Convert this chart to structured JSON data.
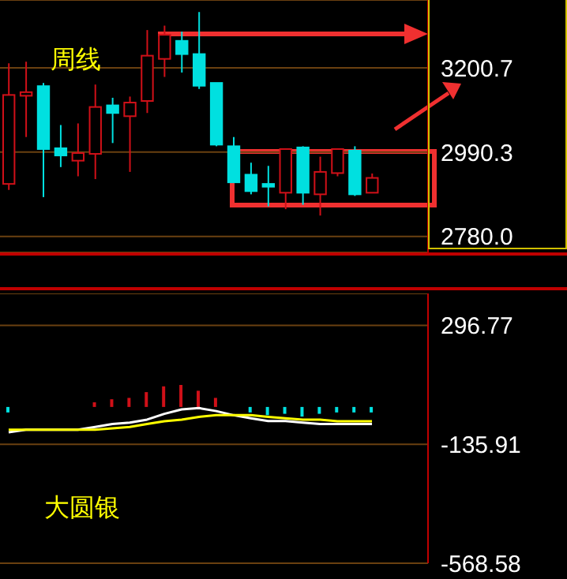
{
  "chart_data": [
    {
      "type": "candlestick",
      "annotations": [
        "周线"
      ],
      "categories": [
        null,
        null,
        null,
        null,
        null,
        null,
        null,
        null,
        null,
        null,
        null,
        null,
        null,
        null,
        null,
        null,
        null,
        null,
        null,
        null,
        null,
        null
      ],
      "ohlc": [
        [
          2911,
          3212,
          2896,
          3133
        ],
        [
          3131,
          3216,
          3028,
          3140
        ],
        [
          3155,
          3163,
          2878,
          2998
        ],
        [
          3000,
          3058,
          2953,
          2982
        ],
        [
          2969,
          3062,
          2930,
          2988
        ],
        [
          2986,
          3159,
          2923,
          3103
        ],
        [
          3107,
          3126,
          3013,
          3088
        ],
        [
          3080,
          3129,
          2941,
          3114
        ],
        [
          3118,
          3295,
          3088,
          3231
        ],
        [
          3223,
          3306,
          3178,
          3283
        ],
        [
          3268,
          3291,
          3189,
          3235
        ],
        [
          3235,
          3340,
          3148,
          3156
        ],
        [
          3163,
          3163,
          3005,
          3009
        ],
        [
          3005,
          3028,
          2915,
          2915
        ],
        [
          2934,
          2964,
          2885,
          2893
        ],
        [
          2911,
          2956,
          2855,
          2904
        ],
        [
          2889,
          2998,
          2848,
          2998
        ],
        [
          3002,
          3005,
          2859,
          2889
        ],
        [
          2885,
          2979,
          2832,
          2941
        ],
        [
          2938,
          2998,
          2930,
          2998
        ],
        [
          2994,
          3005,
          2881,
          2885
        ],
        [
          2889,
          2937,
          2889,
          2926
        ]
      ],
      "colors": [
        "#d01018",
        "#d01018",
        "#00e0e0",
        "#00e0e0",
        "#d01018",
        "#d01018",
        "#00e0e0",
        "#d01018",
        "#d01018",
        "#d01018",
        "#00e0e0",
        "#00e0e0",
        "#00e0e0",
        "#00e0e0",
        "#00e0e0",
        "#00e0e0",
        "#d01018",
        "#00e0e0",
        "#d01018",
        "#d01018",
        "#00e0e0",
        "#d01018"
      ],
      "ylim": [
        2740,
        3370
      ],
      "yticks": [
        3200.7,
        2990.3,
        {
          "value": 2780,
          "label": "2780.0"
        }
      ],
      "grid": "y"
    },
    {
      "type": "line",
      "annotations": [
        "大圆银"
      ],
      "categories": [
        null,
        null,
        null,
        null,
        null,
        null,
        null,
        null,
        null,
        null,
        null,
        null,
        null,
        null,
        null,
        null,
        null,
        null,
        null,
        null,
        null,
        null
      ],
      "series": [
        {
          "type": "bar",
          "colors": [
            "#00e0e0",
            null,
            null,
            null,
            null,
            "#d01018",
            "#d01018",
            "#d01018",
            "#d01018",
            "#d01018",
            "#d01018",
            "#d01018",
            "#d01018",
            null,
            "#00e0e0",
            "#00e0e0",
            "#00e0e0",
            "#00e0e0",
            "#00e0e0",
            "#00e0e0",
            "#00e0e0",
            "#00e0e0"
          ],
          "values": [
            -20,
            null,
            null,
            null,
            null,
            17,
            28,
            33,
            54,
            75,
            80,
            59,
            33,
            null,
            -20,
            -30,
            -25,
            -35,
            -25,
            -20,
            -20,
            -20
          ]
        },
        {
          "type": "line",
          "color": "#ffffff",
          "values": [
            -92,
            -83,
            -83,
            -83,
            -83,
            -73,
            -62,
            -57,
            -46,
            -25,
            -9,
            -4,
            -15,
            -30,
            -41,
            -51,
            -51,
            -57,
            -62,
            -62,
            -62,
            -62
          ]
        },
        {
          "type": "line",
          "color": "#ffff00",
          "values": [
            -83,
            -83,
            -83,
            -83,
            -83,
            -83,
            -78,
            -73,
            -62,
            -52,
            -46,
            -36,
            -30,
            -30,
            -30,
            -36,
            -41,
            -46,
            -46,
            -52,
            -52,
            -52
          ]
        }
      ],
      "ylim": [
        -568.58,
        413
      ],
      "yticks": [
        296.77,
        -135.91,
        -568.58
      ],
      "grid": "y"
    }
  ]
}
